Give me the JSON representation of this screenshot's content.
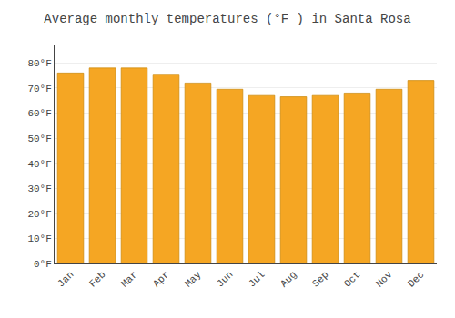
{
  "chart_data": {
    "type": "bar",
    "title": "Average monthly temperatures (°F ) in Santa Rosa",
    "categories": [
      "Jan",
      "Feb",
      "Mar",
      "Apr",
      "May",
      "Jun",
      "Jul",
      "Aug",
      "Sep",
      "Oct",
      "Nov",
      "Dec"
    ],
    "values": [
      76,
      78,
      78,
      75.5,
      72,
      69.5,
      67,
      66.5,
      67,
      68,
      69.5,
      73
    ],
    "color": "#F5A623",
    "ylim": [
      0,
      87
    ],
    "yticks": [
      {
        "value": 0,
        "label": "0°F"
      },
      {
        "value": 10,
        "label": "10°F"
      },
      {
        "value": 20,
        "label": "20°F"
      },
      {
        "value": 30,
        "label": "30°F"
      },
      {
        "value": 40,
        "label": "40°F"
      },
      {
        "value": 50,
        "label": "50°F"
      },
      {
        "value": 60,
        "label": "60°F"
      },
      {
        "value": 70,
        "label": "70°F"
      },
      {
        "value": 80,
        "label": "80°F"
      }
    ],
    "grid": true
  }
}
